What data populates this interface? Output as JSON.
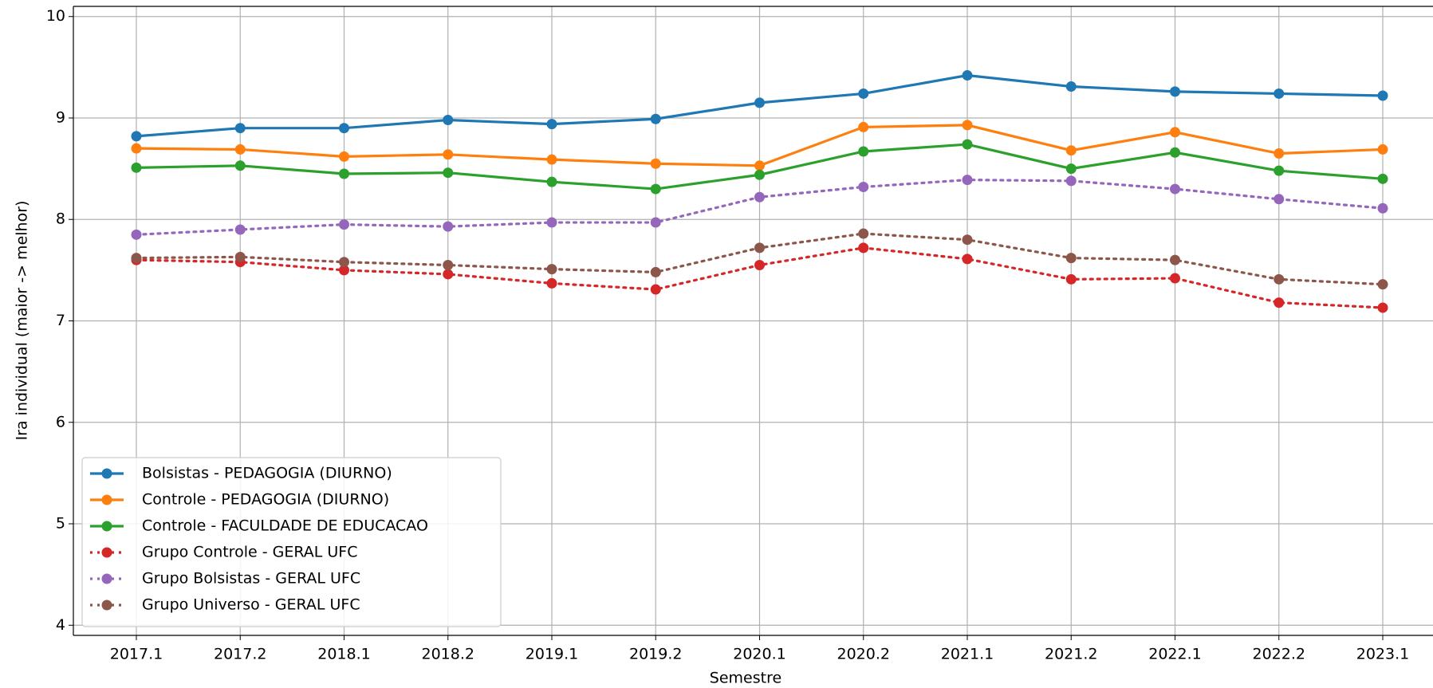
{
  "chart_data": {
    "type": "line",
    "xlabel": "Semestre",
    "ylabel": "Ira individual (maior -> melhor)",
    "categories": [
      "2017.1",
      "2017.2",
      "2018.1",
      "2018.2",
      "2019.1",
      "2019.2",
      "2020.1",
      "2020.2",
      "2021.1",
      "2021.2",
      "2022.1",
      "2022.2",
      "2023.1"
    ],
    "ylim": [
      3.9,
      10.1
    ],
    "yticks": [
      4,
      5,
      6,
      7,
      8,
      9,
      10
    ],
    "grid": true,
    "legend": "lower left",
    "series": [
      {
        "name": "Bolsistas - PEDAGOGIA (DIURNO)",
        "color": "#1f77b4",
        "linestyle": "solid",
        "values": [
          8.82,
          8.9,
          8.9,
          8.98,
          8.94,
          8.99,
          9.15,
          9.24,
          9.42,
          9.31,
          9.26,
          9.24,
          9.22
        ]
      },
      {
        "name": "Controle - PEDAGOGIA (DIURNO)",
        "color": "#ff7f0e",
        "linestyle": "solid",
        "values": [
          8.7,
          8.69,
          8.62,
          8.64,
          8.59,
          8.55,
          8.53,
          8.91,
          8.93,
          8.68,
          8.86,
          8.65,
          8.69
        ]
      },
      {
        "name": "Controle - FACULDADE DE EDUCACAO",
        "color": "#2ca02c",
        "linestyle": "solid",
        "values": [
          8.51,
          8.53,
          8.45,
          8.46,
          8.37,
          8.3,
          8.44,
          8.67,
          8.74,
          8.5,
          8.66,
          8.48,
          8.4
        ]
      },
      {
        "name": "Grupo Controle - GERAL UFC",
        "color": "#d62728",
        "linestyle": "dotted",
        "values": [
          7.6,
          7.58,
          7.5,
          7.46,
          7.37,
          7.31,
          7.55,
          7.72,
          7.61,
          7.41,
          7.42,
          7.18,
          7.13
        ]
      },
      {
        "name": "Grupo Bolsistas - GERAL UFC",
        "color": "#9467bd",
        "linestyle": "dotted",
        "values": [
          7.85,
          7.9,
          7.95,
          7.93,
          7.97,
          7.97,
          8.22,
          8.32,
          8.39,
          8.38,
          8.3,
          8.2,
          8.11
        ]
      },
      {
        "name": "Grupo Universo - GERAL UFC",
        "color": "#8c564b",
        "linestyle": "dotted",
        "values": [
          7.62,
          7.63,
          7.58,
          7.55,
          7.51,
          7.48,
          7.72,
          7.86,
          7.8,
          7.62,
          7.6,
          7.41,
          7.36
        ]
      }
    ]
  }
}
